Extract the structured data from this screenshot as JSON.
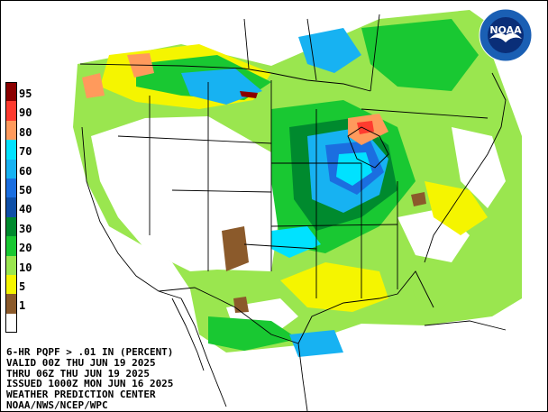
{
  "legend": {
    "items": [
      {
        "label": "95",
        "color": "#8b0000"
      },
      {
        "label": "90",
        "color": "#ff3b2f"
      },
      {
        "label": "80",
        "color": "#ff9a5c"
      },
      {
        "label": "70",
        "color": "#00e2ff"
      },
      {
        "label": "60",
        "color": "#17b2f2"
      },
      {
        "label": "50",
        "color": "#1b6ee0"
      },
      {
        "label": "40",
        "color": "#0f4fa8"
      },
      {
        "label": "30",
        "color": "#008a2e"
      },
      {
        "label": "20",
        "color": "#19c832"
      },
      {
        "label": "10",
        "color": "#9ae64f"
      },
      {
        "label": "5",
        "color": "#f5f500"
      },
      {
        "label": "1",
        "color": "#8b5a2b"
      },
      {
        "label": "",
        "color": "#ffffff"
      }
    ]
  },
  "caption": {
    "line1": "6-HR PQPF > .01 IN (PERCENT)",
    "line2": "VALID 00Z THU JUN 19 2025",
    "line3": "THRU 06Z THU JUN 19 2025",
    "line4": "ISSUED 1000Z MON JUN 16 2025",
    "line5": "WEATHER PREDICTION CENTER",
    "line6": "NOAA/NWS/NCEP/WPC"
  },
  "logo": {
    "text": "NOAA",
    "colors": {
      "outer": "#1a5fb4",
      "inner": "#0a2e78"
    }
  }
}
